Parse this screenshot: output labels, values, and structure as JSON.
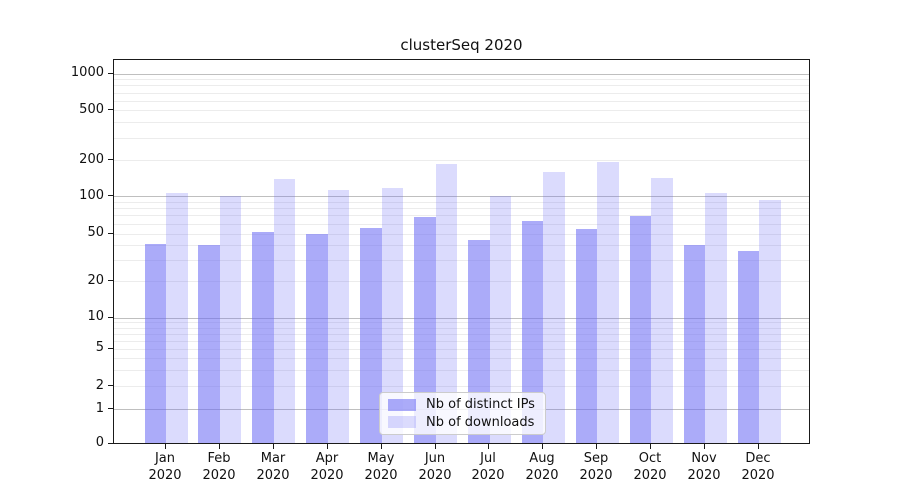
{
  "title": "clusterSeq 2020",
  "chart_data": {
    "type": "bar",
    "title": "clusterSeq 2020",
    "categories": [
      "Jan 2020",
      "Feb 2020",
      "Mar 2020",
      "Apr 2020",
      "May 2020",
      "Jun 2020",
      "Jul 2020",
      "Aug 2020",
      "Sep 2020",
      "Oct 2020",
      "Nov 2020",
      "Dec 2020"
    ],
    "series": [
      {
        "name": "Nb of distinct IPs",
        "color": "rgba(105,105,245,0.56)",
        "values": [
          40,
          39,
          50,
          48,
          54,
          66,
          43,
          61,
          53,
          67,
          39,
          35
        ]
      },
      {
        "name": "Nb of downloads",
        "color": "rgba(105,105,245,0.245)",
        "values": [
          103,
          97,
          134,
          110,
          114,
          180,
          97,
          155,
          189,
          138,
          103,
          90
        ]
      }
    ],
    "xlabel": "",
    "ylabel": "",
    "yscale": "symlog",
    "yticks": [
      0,
      1,
      2,
      5,
      10,
      20,
      50,
      100,
      200,
      500,
      1000
    ],
    "ytick_labels": [
      "0",
      "1",
      "2",
      "5",
      "10",
      "20",
      "50",
      "100",
      "200",
      "500",
      "1000"
    ],
    "major_grid_values": [
      1,
      10,
      100,
      1000
    ],
    "minor_grid_values": [
      2,
      3,
      4,
      5,
      6,
      7,
      8,
      9,
      20,
      30,
      40,
      50,
      60,
      70,
      80,
      90,
      200,
      300,
      400,
      500,
      600,
      700,
      800,
      900
    ],
    "ylim": [
      0,
      1400
    ],
    "grid": "on",
    "legend_position": "lower center"
  },
  "legend": {
    "items": [
      {
        "label": "Nb of distinct IPs"
      },
      {
        "label": "Nb of downloads"
      }
    ]
  }
}
